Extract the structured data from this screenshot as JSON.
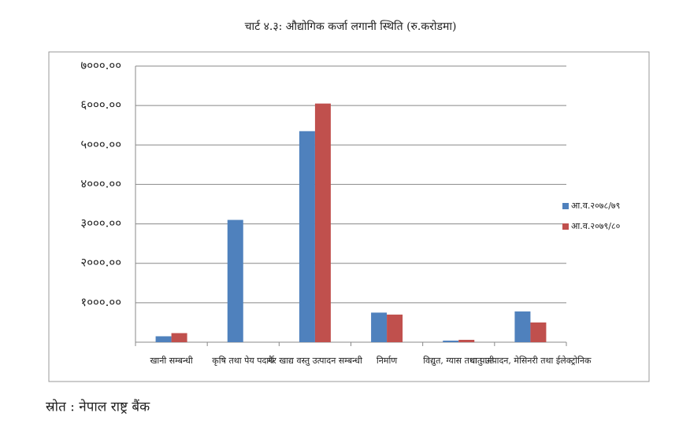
{
  "chart_data": {
    "type": "bar",
    "title": "चार्ट ४.३: औद्योगिक कर्जा लगानी स्थिति (रु.करोडमा)",
    "categories": [
      "खानी सम्बन्धी",
      "कृषि तथा पेय पदार्थ",
      "गैर खाद्य वस्तु उत्पादन सम्बन्धी",
      "निर्माण",
      "विद्युत, ग्यास तथा पानी",
      "धातु उत्पादन, मेसिनरी तथा ईलेक्ट्रोनिक"
    ],
    "series": [
      {
        "name": "आ.व.२०७८/७९",
        "color": "#4f81bd",
        "values": [
          150,
          3100,
          5350,
          750,
          40,
          780
        ]
      },
      {
        "name": "आ.व.२०७९/८०",
        "color": "#c0504d",
        "values": [
          230,
          0,
          6050,
          700,
          60,
          500
        ]
      }
    ],
    "ylim": [
      0,
      7000
    ],
    "yticks": [
      {
        "value": 1000,
        "label": "१०००.००"
      },
      {
        "value": 2000,
        "label": "२०००.००"
      },
      {
        "value": 3000,
        "label": "३०००.००"
      },
      {
        "value": 4000,
        "label": "४०००.००"
      },
      {
        "value": 5000,
        "label": "५०००.००"
      },
      {
        "value": 6000,
        "label": "६०००.००"
      },
      {
        "value": 7000,
        "label": "७०००.००"
      }
    ],
    "grid": true,
    "legend": "right"
  },
  "source": "स्रोत : नेपाल राष्ट्र बैंक"
}
